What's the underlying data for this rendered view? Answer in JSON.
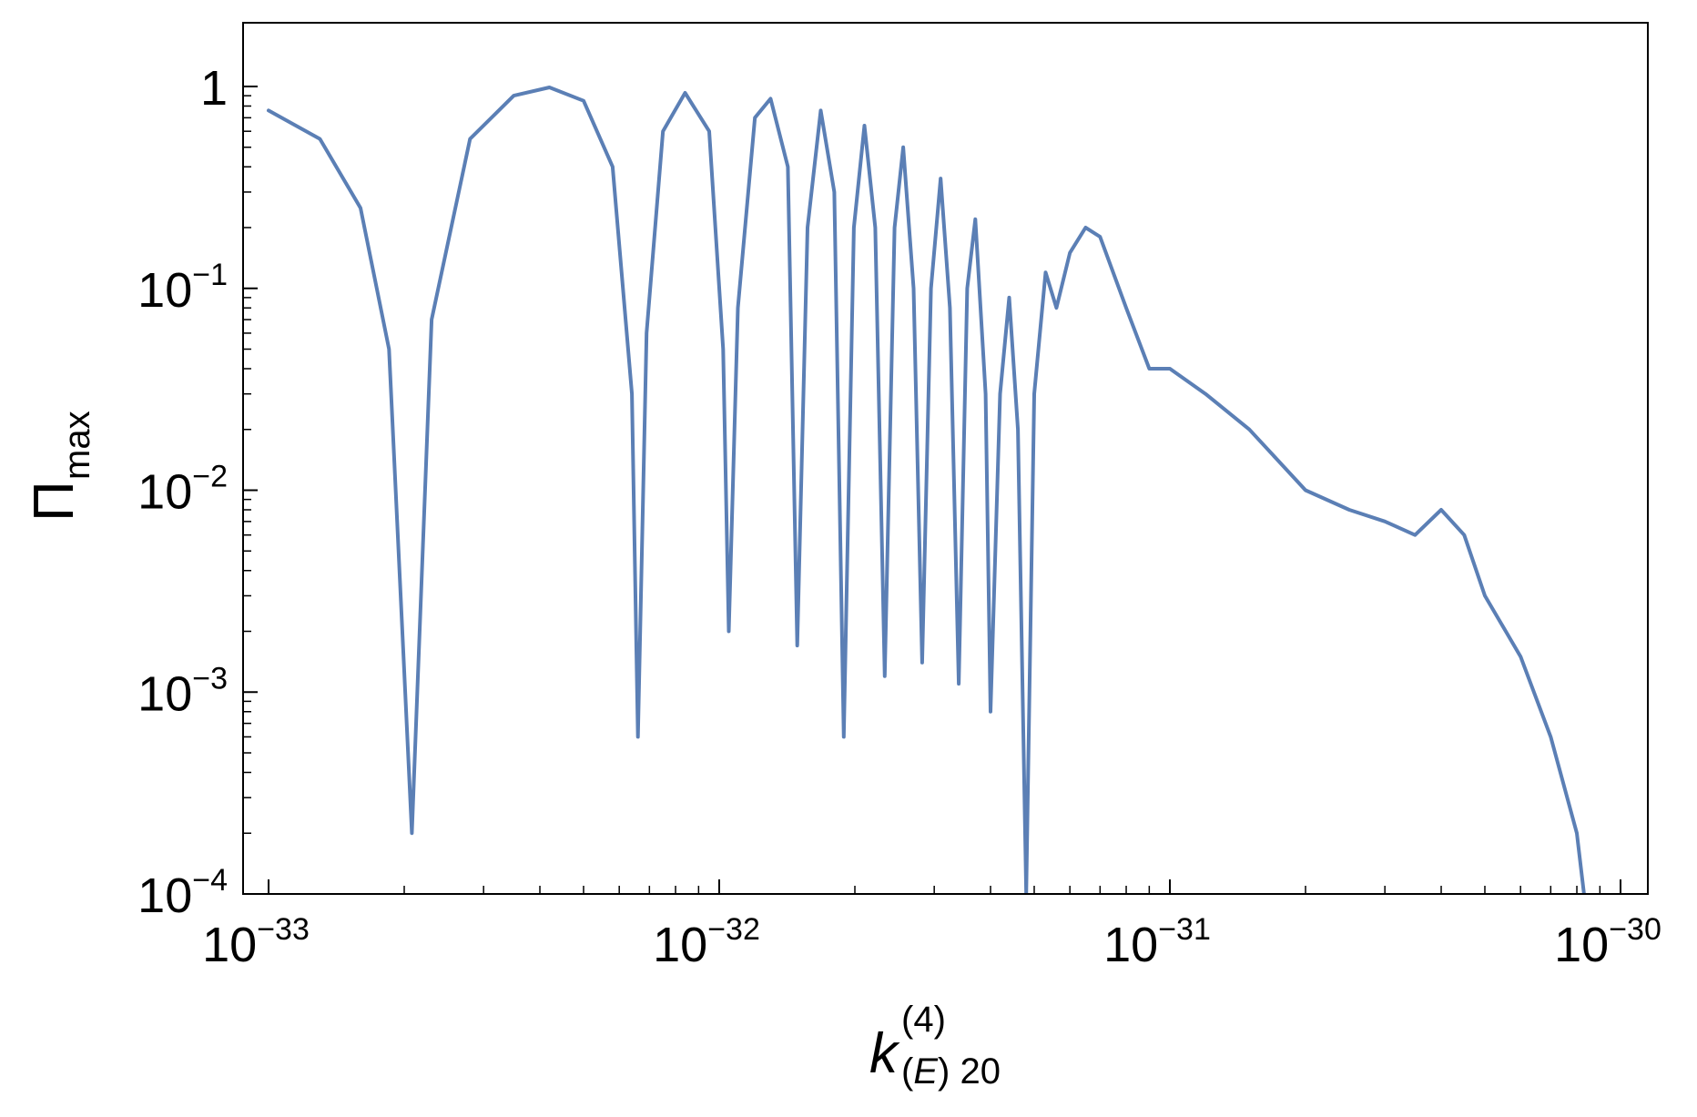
{
  "chart_data": {
    "type": "line",
    "xlabel": {
      "base": "k",
      "superscript": "(4)",
      "subscript": "(E) 20"
    },
    "ylabel": {
      "base": "Π",
      "subscript": "max"
    },
    "x_scale": "log",
    "y_scale": "log",
    "xlim": [
      1e-33,
      1e-30
    ],
    "ylim": [
      0.0001,
      1.8
    ],
    "grid": false,
    "x_ticks": [
      {
        "value": 1e-33,
        "base": "10",
        "exp": "−33"
      },
      {
        "value": 1e-32,
        "base": "10",
        "exp": "−32"
      },
      {
        "value": 1e-31,
        "base": "10",
        "exp": "−31"
      },
      {
        "value": 1e-30,
        "base": "10",
        "exp": "−30"
      }
    ],
    "y_ticks": [
      {
        "value": 1,
        "base": "1",
        "exp": ""
      },
      {
        "value": 0.1,
        "base": "10",
        "exp": "−1"
      },
      {
        "value": 0.01,
        "base": "10",
        "exp": "−2"
      },
      {
        "value": 0.001,
        "base": "10",
        "exp": "−3"
      },
      {
        "value": 0.0001,
        "base": "10",
        "exp": "−4"
      }
    ],
    "series": [
      {
        "color": "#5b7fb5",
        "description_points": [
          [
            1e-33,
            0.76
          ],
          [
            1.3e-33,
            0.55
          ],
          [
            1.6e-33,
            0.25
          ],
          [
            1.85e-33,
            0.05
          ],
          [
            2.08e-33,
            0.0002
          ],
          [
            2.3e-33,
            0.07
          ],
          [
            2.8e-33,
            0.55
          ],
          [
            3.5e-33,
            0.9
          ],
          [
            4.2e-33,
            0.99
          ],
          [
            5e-33,
            0.85
          ],
          [
            5.8e-33,
            0.4
          ],
          [
            6.4e-33,
            0.03
          ],
          [
            6.6e-33,
            0.0006
          ],
          [
            6.9e-33,
            0.06
          ],
          [
            7.5e-33,
            0.6
          ],
          [
            8.4e-33,
            0.93
          ],
          [
            9.5e-33,
            0.6
          ],
          [
            1.02e-32,
            0.05
          ],
          [
            1.05e-32,
            0.002
          ],
          [
            1.1e-32,
            0.08
          ],
          [
            1.2e-32,
            0.7
          ],
          [
            1.3e-32,
            0.87
          ],
          [
            1.42e-32,
            0.4
          ],
          [
            1.49e-32,
            0.0017
          ],
          [
            1.57e-32,
            0.2
          ],
          [
            1.68e-32,
            0.76
          ],
          [
            1.8e-32,
            0.3
          ],
          [
            1.89e-32,
            0.0006
          ],
          [
            1.99e-32,
            0.2
          ],
          [
            2.1e-32,
            0.64
          ],
          [
            2.22e-32,
            0.2
          ],
          [
            2.33e-32,
            0.0012
          ],
          [
            2.45e-32,
            0.2
          ],
          [
            2.56e-32,
            0.5
          ],
          [
            2.7e-32,
            0.1
          ],
          [
            2.82e-32,
            0.0014
          ],
          [
            2.95e-32,
            0.1
          ],
          [
            3.1e-32,
            0.35
          ],
          [
            3.25e-32,
            0.08
          ],
          [
            3.4e-32,
            0.0011
          ],
          [
            3.55e-32,
            0.1
          ],
          [
            3.7e-32,
            0.22
          ],
          [
            3.9e-32,
            0.03
          ],
          [
            4e-32,
            0.0008
          ],
          [
            4.2e-32,
            0.03
          ],
          [
            4.4e-32,
            0.09
          ],
          [
            4.6e-32,
            0.02
          ],
          [
            4.8e-32,
            0.0001
          ],
          [
            5e-32,
            0.03
          ],
          [
            5.3e-32,
            0.12
          ],
          [
            5.6e-32,
            0.08
          ],
          [
            6e-32,
            0.15
          ],
          [
            6.5e-32,
            0.2
          ],
          [
            7e-32,
            0.18
          ],
          [
            8e-32,
            0.08
          ],
          [
            9e-32,
            0.04
          ],
          [
            1e-31,
            0.04
          ],
          [
            1.2e-31,
            0.03
          ],
          [
            1.5e-31,
            0.02
          ],
          [
            2e-31,
            0.01
          ],
          [
            2.5e-31,
            0.008
          ],
          [
            3e-31,
            0.007
          ],
          [
            3.5e-31,
            0.006
          ],
          [
            4e-31,
            0.008
          ],
          [
            4.5e-31,
            0.006
          ],
          [
            5e-31,
            0.003
          ],
          [
            6e-31,
            0.0015
          ],
          [
            7e-31,
            0.0006
          ],
          [
            8e-31,
            0.0002
          ],
          [
            8.3e-31,
            0.0001
          ]
        ]
      }
    ]
  }
}
